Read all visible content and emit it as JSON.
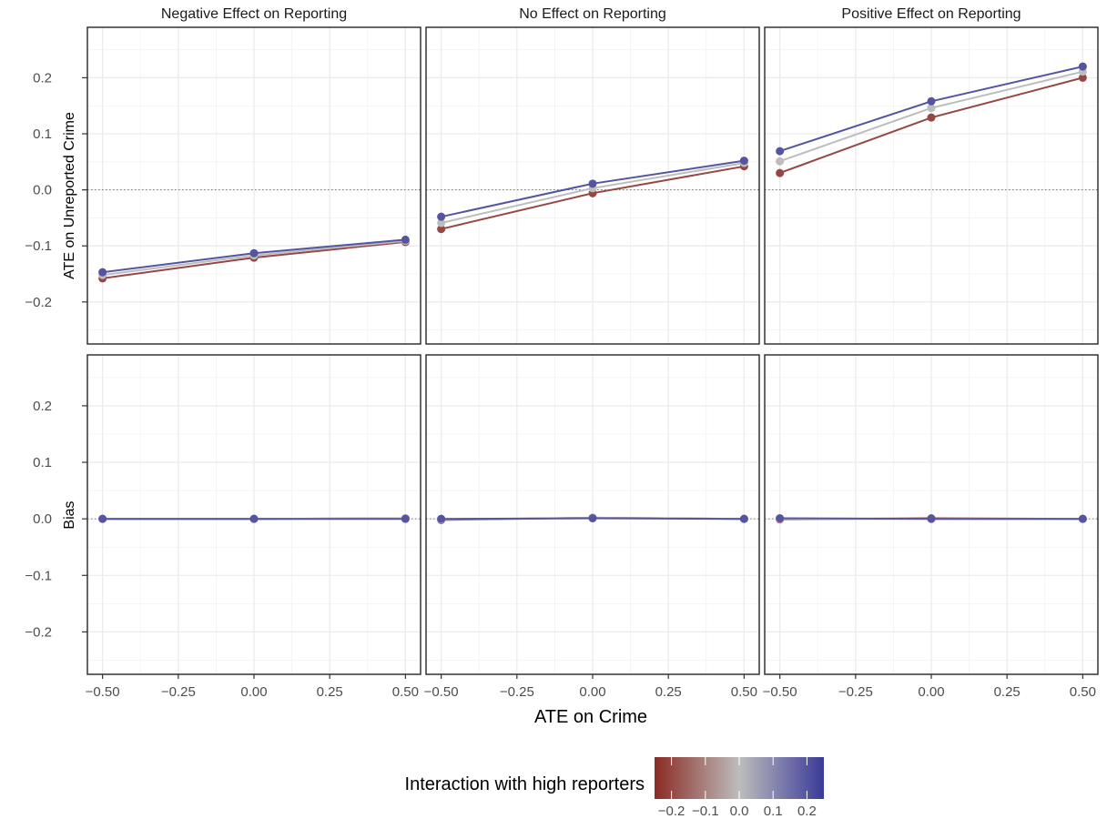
{
  "chart_data": {
    "type": "line",
    "xlabel": "ATE on Crime",
    "panel_columns": [
      "Negative Effect on Reporting",
      "No Effect on Reporting",
      "Positive Effect on Reporting"
    ],
    "panel_rows": [
      "ATE on Unreported Crime",
      "Bias"
    ],
    "x_ticks": [
      "-0.50",
      "-0.25",
      "0.00",
      "0.25",
      "0.50"
    ],
    "x_tick_labels": [
      "−0.50",
      "−0.25",
      "0.00",
      "0.25",
      "0.50"
    ],
    "y_ticks": [
      "-0.2",
      "-0.1",
      "0.0",
      "0.1",
      "0.2"
    ],
    "y_tick_labels": [
      "−0.2",
      "−0.1",
      "0.0",
      "0.1",
      "0.2"
    ],
    "xlim": [
      -0.55,
      0.55
    ],
    "ylim": [
      -0.275,
      0.29
    ],
    "reference_line_y": 0,
    "grid": true,
    "x": [
      -0.5,
      0,
      0.5
    ],
    "series_legend": {
      "title": "Interaction with high reporters",
      "range": [
        -0.25,
        0.25
      ],
      "ticks": [
        "-0.2",
        "-0.1",
        "0.0",
        "0.1",
        "0.2"
      ],
      "tick_labels": [
        "−0.2",
        "−0.1",
        "0.0",
        "0.1",
        "0.2"
      ],
      "colors": {
        "low": "#8B2A24",
        "mid": "#BDBDBD",
        "high": "#3A3A99"
      }
    },
    "panels": [
      {
        "row": 0,
        "col": 0,
        "series": [
          {
            "interaction": -0.2,
            "y": [
              -0.158,
              -0.121,
              -0.093
            ]
          },
          {
            "interaction": 0.0,
            "y": [
              -0.152,
              -0.117,
              -0.091
            ]
          },
          {
            "interaction": 0.2,
            "y": [
              -0.147,
              -0.113,
              -0.089
            ]
          }
        ]
      },
      {
        "row": 0,
        "col": 1,
        "series": [
          {
            "interaction": -0.2,
            "y": [
              -0.07,
              -0.006,
              0.042
            ]
          },
          {
            "interaction": 0.0,
            "y": [
              -0.059,
              0.003,
              0.048
            ]
          },
          {
            "interaction": 0.2,
            "y": [
              -0.048,
              0.011,
              0.052
            ]
          }
        ]
      },
      {
        "row": 0,
        "col": 2,
        "series": [
          {
            "interaction": -0.2,
            "y": [
              0.03,
              0.129,
              0.2
            ]
          },
          {
            "interaction": 0.0,
            "y": [
              0.051,
              0.146,
              0.211
            ]
          },
          {
            "interaction": 0.2,
            "y": [
              0.069,
              0.158,
              0.22
            ]
          }
        ]
      },
      {
        "row": 1,
        "col": 0,
        "series": [
          {
            "interaction": -0.2,
            "y": [
              0.0,
              0.0,
              0.001
            ]
          },
          {
            "interaction": 0.0,
            "y": [
              0.0,
              0.0,
              0.001
            ]
          },
          {
            "interaction": 0.2,
            "y": [
              0.0,
              0.0,
              0.0
            ]
          }
        ]
      },
      {
        "row": 1,
        "col": 1,
        "series": [
          {
            "interaction": -0.2,
            "y": [
              -0.002,
              0.002,
              0.0
            ]
          },
          {
            "interaction": 0.0,
            "y": [
              -0.001,
              0.002,
              0.0
            ]
          },
          {
            "interaction": 0.2,
            "y": [
              0.0,
              0.001,
              0.0
            ]
          }
        ]
      },
      {
        "row": 1,
        "col": 2,
        "series": [
          {
            "interaction": -0.2,
            "y": [
              -0.001,
              0.001,
              0.0
            ]
          },
          {
            "interaction": 0.0,
            "y": [
              0.0,
              0.0,
              0.0
            ]
          },
          {
            "interaction": 0.2,
            "y": [
              0.001,
              0.0,
              0.0
            ]
          }
        ]
      }
    ]
  }
}
